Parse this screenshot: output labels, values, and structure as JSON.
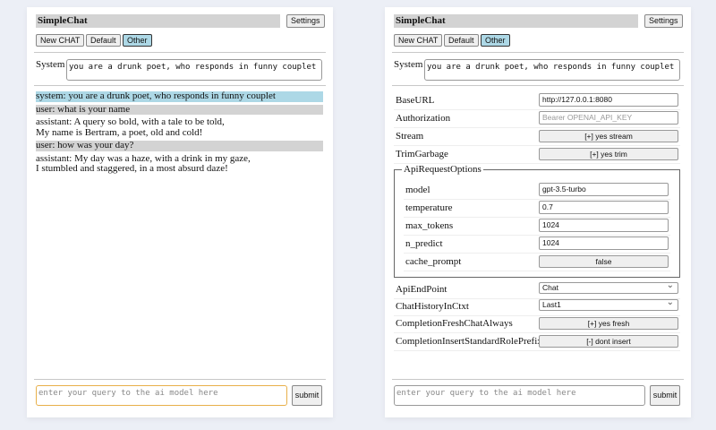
{
  "app_title": "SimpleChat",
  "settings_label": "Settings",
  "buttons": {
    "new_chat": "New CHAT",
    "default": "Default",
    "other": "Other"
  },
  "system_label": "System",
  "system_prompt": "you are a drunk poet, who responds in funny couplet",
  "messages": [
    {
      "role": "system",
      "lines": [
        "system: you are a drunk poet, who responds in funny couplet"
      ]
    },
    {
      "role": "user",
      "lines": [
        "user: what is your name"
      ]
    },
    {
      "role": "assistant",
      "lines": [
        "assistant: A query so bold, with a tale to be told,",
        "My name is Bertram, a poet, old and cold!"
      ]
    },
    {
      "role": "user",
      "lines": [
        "user: how was your day?"
      ]
    },
    {
      "role": "assistant",
      "lines": [
        "assistant: My day was a haze, with a drink in my gaze,",
        "I stumbled and staggered, in a most absurd daze!"
      ]
    }
  ],
  "query_placeholder": "enter your query to the ai model here",
  "submit_label": "submit",
  "settings": {
    "base_url": {
      "label": "BaseURL",
      "value": "http://127.0.0.1:8080"
    },
    "authorization": {
      "label": "Authorization",
      "placeholder": "Bearer OPENAI_API_KEY"
    },
    "stream": {
      "label": "Stream",
      "value": "[+] yes stream"
    },
    "trim_garbage": {
      "label": "TrimGarbage",
      "value": "[+] yes trim"
    },
    "api_request_options": {
      "legend": "ApiRequestOptions",
      "model": {
        "label": "model",
        "value": "gpt-3.5-turbo"
      },
      "temperature": {
        "label": "temperature",
        "value": "0.7"
      },
      "max_tokens": {
        "label": "max_tokens",
        "value": "1024"
      },
      "n_predict": {
        "label": "n_predict",
        "value": "1024"
      },
      "cache_prompt": {
        "label": "cache_prompt",
        "value": "false"
      }
    },
    "api_endpoint": {
      "label": "ApiEndPoint",
      "value": "Chat"
    },
    "chat_history": {
      "label": "ChatHistoryInCtxt",
      "value": "Last1"
    },
    "completion_fresh": {
      "label": "CompletionFreshChatAlways",
      "value": "[+] yes fresh"
    },
    "completion_insert": {
      "label": "CompletionInsertStandardRolePrefix",
      "value": "[-] dont insert"
    }
  },
  "colors": {
    "system_msg_bg": "#add8e6",
    "user_msg_bg": "#d3d3d3",
    "input_focus": "#e8b04a"
  }
}
